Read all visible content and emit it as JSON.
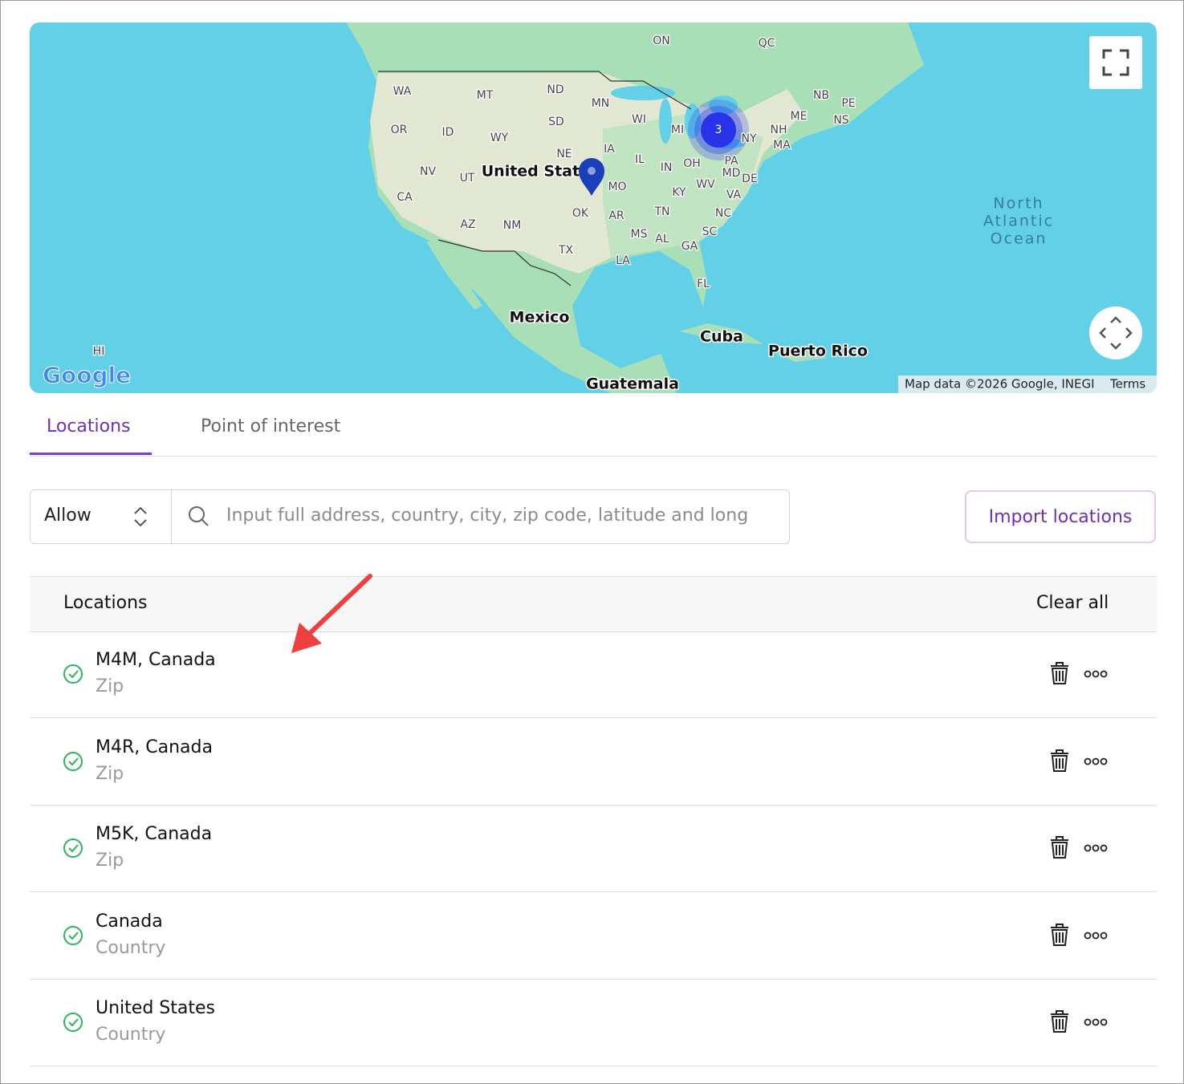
{
  "map": {
    "labels": [
      "ON",
      "QC",
      "WA",
      "MT",
      "ND",
      "MN",
      "NB",
      "PE",
      "NS",
      "ME",
      "OR",
      "ID",
      "SD",
      "WI",
      "MI",
      "NY",
      "NH",
      "MA",
      "WY",
      "NE",
      "IA",
      "IL",
      "IN",
      "OH",
      "PA",
      "MD",
      "DE",
      "NV",
      "UT",
      "United States",
      "MO",
      "KY",
      "WV",
      "VA",
      "CA",
      "OK",
      "AR",
      "TN",
      "NC",
      "AZ",
      "NM",
      "MS",
      "AL",
      "GA",
      "SC",
      "TX",
      "LA",
      "FL",
      "Mexico",
      "Cuba",
      "Puerto Rico",
      "HI",
      "Guatemala"
    ],
    "ocean": [
      "North",
      "Atlantic",
      "Ocean"
    ],
    "cluster": "3",
    "logo": "Google",
    "attribution": "Map data ©2026 Google, INEGI",
    "terms": "Terms"
  },
  "tabs": [
    "Locations",
    "Point of interest"
  ],
  "filter": {
    "mode": "Allow",
    "placeholder": "Input full address, country, city, zip code, latitude and long"
  },
  "import_button": "Import locations",
  "table": {
    "header": {
      "title": "Locations",
      "clear": "Clear all"
    },
    "rows": [
      {
        "name": "M4M, Canada",
        "type": "Zip"
      },
      {
        "name": "M4R, Canada",
        "type": "Zip"
      },
      {
        "name": "M5K, Canada",
        "type": "Zip"
      },
      {
        "name": "Canada",
        "type": "Country"
      },
      {
        "name": "United States",
        "type": "Country"
      }
    ]
  }
}
